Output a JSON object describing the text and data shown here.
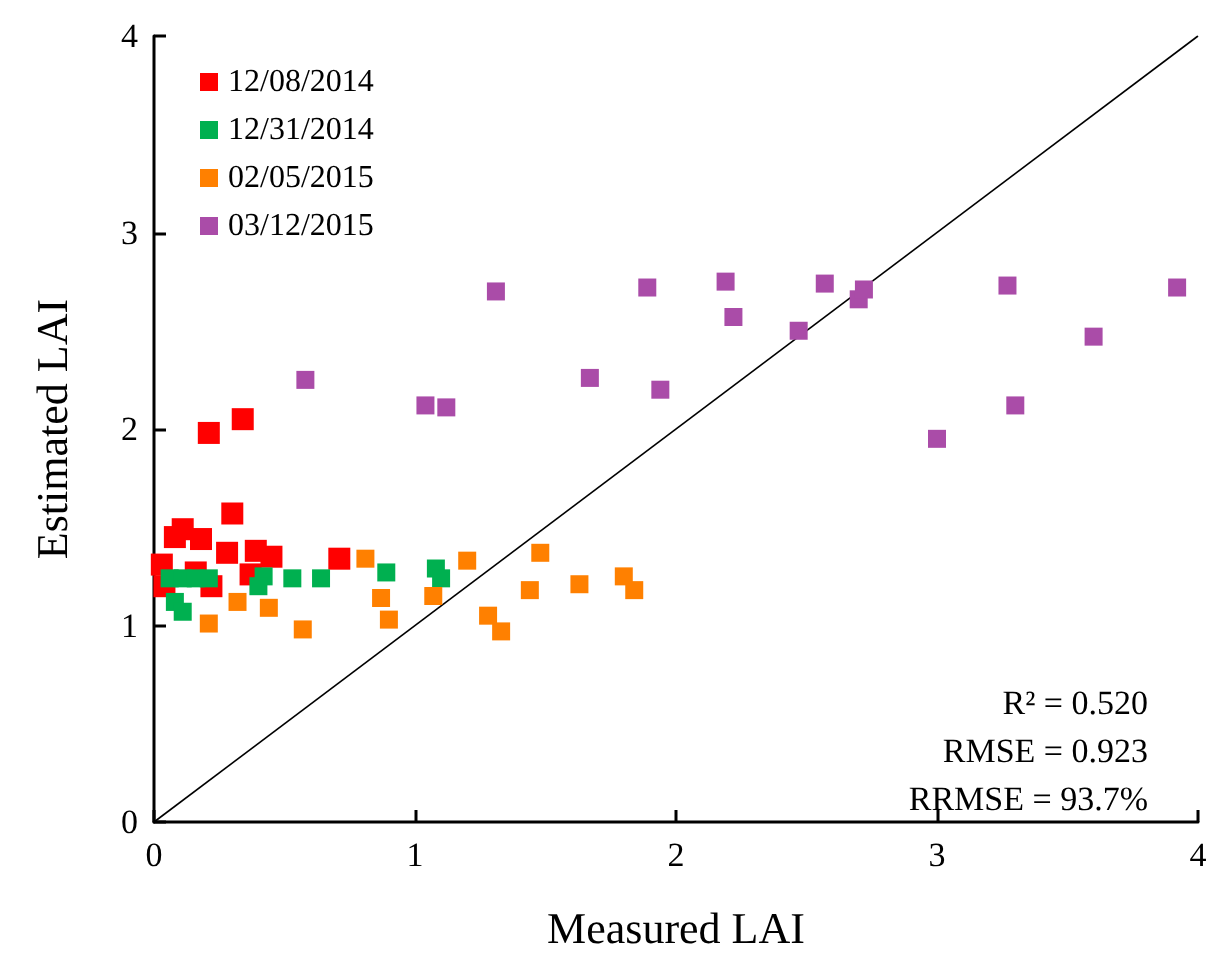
{
  "chart_data": {
    "type": "scatter",
    "xlabel": "Measured LAI",
    "ylabel": "Estimated LAI",
    "xlim": [
      0,
      4
    ],
    "ylim": [
      0,
      4
    ],
    "xticks": [
      0,
      1,
      2,
      3,
      4
    ],
    "yticks": [
      0,
      1,
      2,
      3,
      4
    ],
    "grid": false,
    "legend": "top left",
    "marker": "square",
    "annotations": [
      "R² = 0.520",
      "RMSE = 0.923",
      "RRMSE = 93.7%"
    ],
    "series": [
      {
        "name": "12/08/2014",
        "color": "#ff0000",
        "x": [
          0.21,
          0.34,
          0.3,
          0.11,
          0.08,
          0.18,
          0.28,
          0.39,
          0.45,
          0.71,
          0.03,
          0.16,
          0.37,
          0.04,
          0.22
        ],
        "values": [
          1.98,
          2.05,
          1.57,
          1.49,
          1.45,
          1.44,
          1.37,
          1.38,
          1.35,
          1.34,
          1.31,
          1.27,
          1.26,
          1.2,
          1.2
        ]
      },
      {
        "name": "12/31/2014",
        "color": "#00b050",
        "x": [
          0.06,
          0.11,
          0.16,
          0.21,
          0.42,
          0.4,
          0.53,
          0.64,
          0.89,
          1.08,
          1.1,
          0.08,
          0.11
        ],
        "values": [
          1.24,
          1.24,
          1.24,
          1.24,
          1.25,
          1.2,
          1.24,
          1.24,
          1.27,
          1.29,
          1.24,
          1.12,
          1.07
        ]
      },
      {
        "name": "02/05/2015",
        "color": "#ff8000",
        "x": [
          0.81,
          1.2,
          0.32,
          0.44,
          0.21,
          0.57,
          0.87,
          0.9,
          1.07,
          1.48,
          1.44,
          1.63,
          1.8,
          1.84,
          1.28,
          1.33
        ],
        "values": [
          1.34,
          1.33,
          1.12,
          1.09,
          1.01,
          0.98,
          1.14,
          1.03,
          1.15,
          1.37,
          1.18,
          1.21,
          1.25,
          1.18,
          1.05,
          0.97
        ]
      },
      {
        "name": "03/12/2015",
        "color": "#aa4ca8",
        "x": [
          0.58,
          1.31,
          1.04,
          1.12,
          1.67,
          1.89,
          1.94,
          2.19,
          2.22,
          2.47,
          2.57,
          2.7,
          2.72,
          3.0,
          3.27,
          3.3,
          3.6,
          3.92
        ],
        "values": [
          2.25,
          2.7,
          2.12,
          2.11,
          2.26,
          2.72,
          2.2,
          2.75,
          2.57,
          2.5,
          2.74,
          2.66,
          2.71,
          1.95,
          2.73,
          2.12,
          2.47,
          2.72
        ]
      },
      {
        "type": "line",
        "color": "#000000",
        "line_style": "solid",
        "marker": "none",
        "x": [
          0,
          4
        ],
        "values": [
          0,
          4
        ]
      }
    ]
  }
}
